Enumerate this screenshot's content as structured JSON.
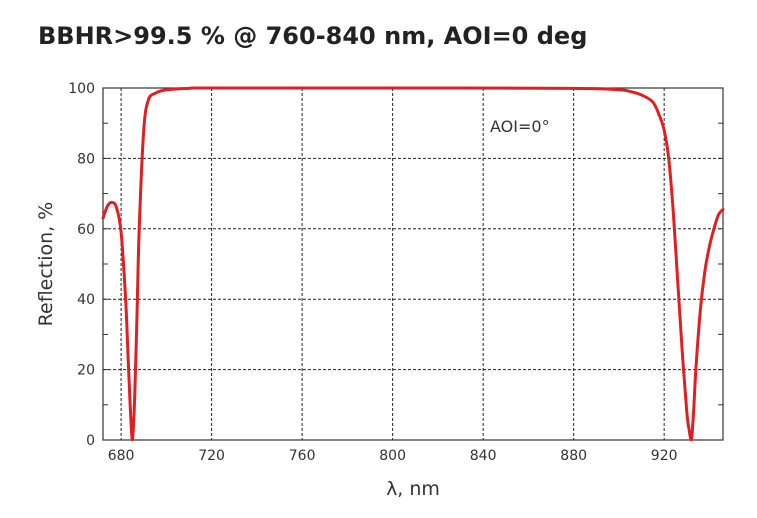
{
  "chart_data": {
    "type": "line",
    "title": "BBHR>99.5 % @ 760-840 nm, AOI=0 deg",
    "xlabel": "λ, nm",
    "ylabel": "Reflection, %",
    "annotation": "AOI=0°",
    "xlim": [
      672,
      946
    ],
    "ylim": [
      0,
      100
    ],
    "x_ticks": [
      680,
      720,
      760,
      800,
      840,
      880,
      920
    ],
    "y_ticks": [
      0,
      20,
      40,
      60,
      80,
      100
    ],
    "grid": true,
    "series": [
      {
        "color": "#e02020",
        "x": [
          672,
          674,
          676,
          678,
          680,
          682,
          683,
          684,
          685,
          686,
          687,
          688,
          690,
          692,
          695,
          700,
          710,
          720,
          800,
          880,
          900,
          905,
          910,
          915,
          918,
          920,
          922,
          924,
          926,
          928,
          930,
          931,
          932,
          933,
          934,
          936,
          938,
          940,
          942,
          944,
          946
        ],
        "y": [
          63,
          66.5,
          67.5,
          66,
          59,
          40,
          25,
          10,
          0,
          12,
          35,
          60,
          88,
          96.5,
          98.5,
          99.5,
          99.9,
          100,
          100,
          99.9,
          99.5,
          99,
          98,
          96,
          92,
          88,
          80,
          65,
          45,
          25,
          8,
          3,
          0,
          8,
          20,
          37,
          48,
          55,
          60,
          64,
          65.5
        ]
      }
    ]
  }
}
